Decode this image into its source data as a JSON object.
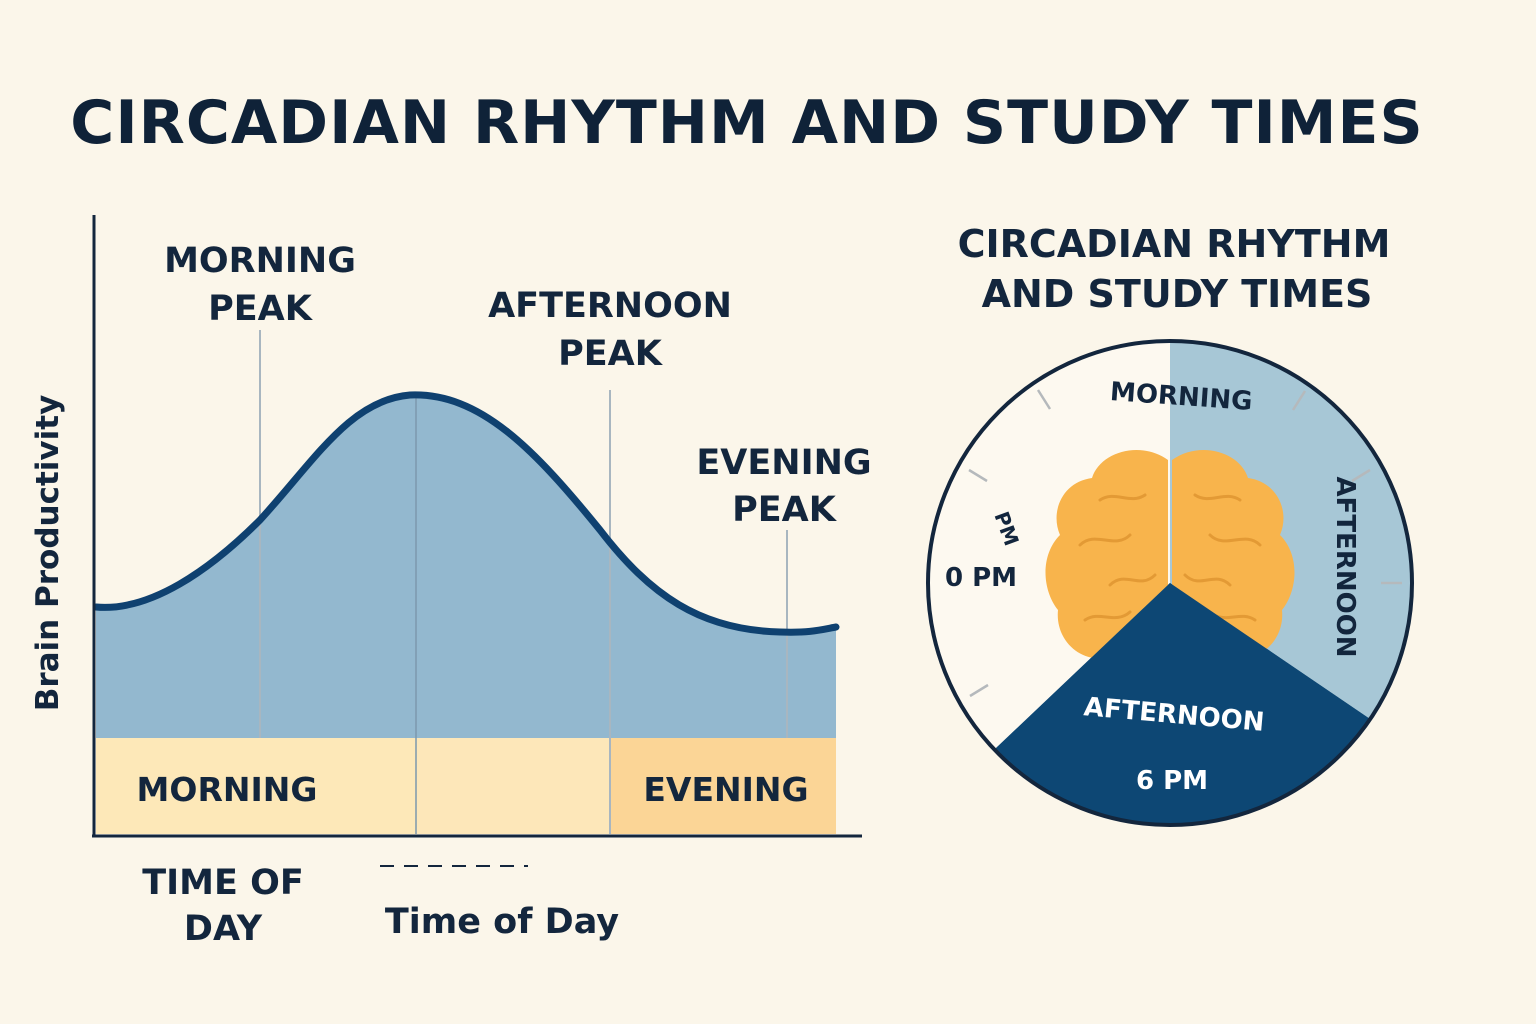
{
  "title": "CIRCADIAN RHYTHM AND STUDY TIMES",
  "chart": {
    "y_axis_label": "Brain Productivity",
    "peaks": {
      "morning": [
        "MORNING",
        "PEAK"
      ],
      "afternoon": [
        "AFTERNOON",
        "PEAK"
      ],
      "evening": [
        "EVENING",
        "PEAK"
      ]
    },
    "bands": {
      "morning": "MORNING",
      "evening": "EVENING"
    },
    "time_of_day_stacked": [
      "TIME OF",
      "DAY"
    ],
    "time_of_day": "Time of Day",
    "colors": {
      "area": "#93b8cf",
      "curve": "#0f4170",
      "band_morning": "#fde8b8",
      "band_mid": "#fde7b9",
      "band_evening": "#fbd596"
    }
  },
  "clock": {
    "title": [
      "CIRCADIAN RHYTHM",
      "AND STUDY TIMES"
    ],
    "labels": {
      "top": "MORNING",
      "right": "AFTERNOON",
      "bottom_sector": "AFTERNOON",
      "bottom": "6 PM",
      "left": "0 PM",
      "left_small": "PM"
    },
    "icon": "brain-icon",
    "colors": {
      "light_sector": "#a7c7d6",
      "dark_sector": "#0d4774",
      "brain": "#f8b44c",
      "face": "#fdf9f0"
    }
  }
}
